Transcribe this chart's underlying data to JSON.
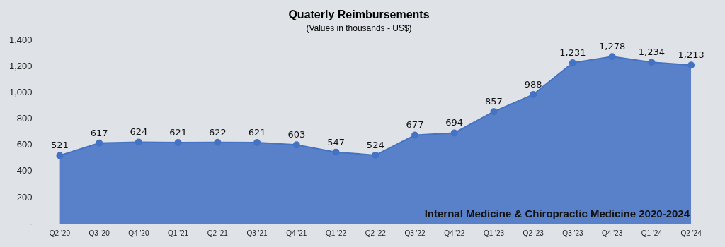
{
  "chart_data": {
    "type": "area",
    "title": "Quaterly Reimbursements",
    "subtitle": "(Values in thousands - US$)",
    "categories": [
      "Q2 '20",
      "Q3 '20",
      "Q4 '20",
      "Q1 '21",
      "Q2 '21",
      "Q3 '21",
      "Q4 '21",
      "Q1 '22",
      "Q2 '22",
      "Q3 '22",
      "Q4 '22",
      "Q1 '23",
      "Q2 '23",
      "Q3 '23",
      "Q4 '23",
      "Q1 '24",
      "Q2 '24"
    ],
    "series": [
      {
        "color": "#4472c4",
        "values": [
          521,
          617,
          624,
          621,
          622,
          621,
          603,
          547,
          524,
          677,
          694,
          857,
          988,
          1231,
          1278,
          1234,
          1213
        ],
        "value_labels": [
          "521",
          "617",
          "624",
          "621",
          "622",
          "621",
          "603",
          "547",
          "524",
          "677",
          "694",
          "857",
          "988",
          "1,231",
          "1,278",
          "1,234",
          "1,213"
        ]
      }
    ],
    "ylim": [
      0,
      1400
    ],
    "yticks": [
      {
        "value": 0,
        "label": "-"
      },
      200,
      400,
      600,
      800,
      {
        "value": 1000,
        "label": "1,000"
      },
      {
        "value": 1200,
        "label": "1,200"
      },
      {
        "value": 1400,
        "label": "1,400"
      }
    ],
    "grid": false,
    "legend": false,
    "marker": "circle",
    "line_style": "solid",
    "annotations": [
      "Internal Medicine & Chiropractic Medicine 2020-2024"
    ]
  }
}
